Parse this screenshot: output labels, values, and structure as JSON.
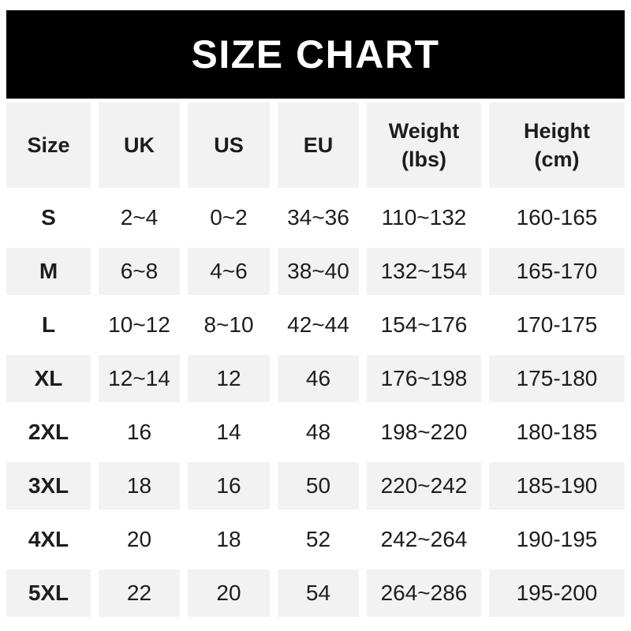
{
  "title": "SIZE CHART",
  "colors": {
    "title_bar_bg": "#000000",
    "title_text": "#ffffff",
    "alt_row_bg": "#f2f2f2",
    "body_text": "#1d1d1d",
    "page_bg": "#ffffff"
  },
  "chart_data": {
    "type": "table",
    "title": "SIZE CHART",
    "columns": [
      "Size",
      "UK",
      "US",
      "EU",
      "Weight (lbs)",
      "Height (cm)"
    ],
    "rows": [
      [
        "S",
        "2~4",
        "0~2",
        "34~36",
        "110~132",
        "160-165"
      ],
      [
        "M",
        "6~8",
        "4~6",
        "38~40",
        "132~154",
        "165-170"
      ],
      [
        "L",
        "10~12",
        "8~10",
        "42~44",
        "154~176",
        "170-175"
      ],
      [
        "XL",
        "12~14",
        "12",
        "46",
        "176~198",
        "175-180"
      ],
      [
        "2XL",
        "16",
        "14",
        "48",
        "198~220",
        "180-185"
      ],
      [
        "3XL",
        "18",
        "16",
        "50",
        "220~242",
        "185-190"
      ],
      [
        "4XL",
        "20",
        "18",
        "52",
        "242~264",
        "190-195"
      ],
      [
        "5XL",
        "22",
        "20",
        "54",
        "264~286",
        "195-200"
      ]
    ],
    "layout": {
      "striped": "alternating white and light gray starting white on first data row",
      "header_bg": "#f2f2f2",
      "grid": "10px white gutters between columns, 8px between rows"
    }
  }
}
